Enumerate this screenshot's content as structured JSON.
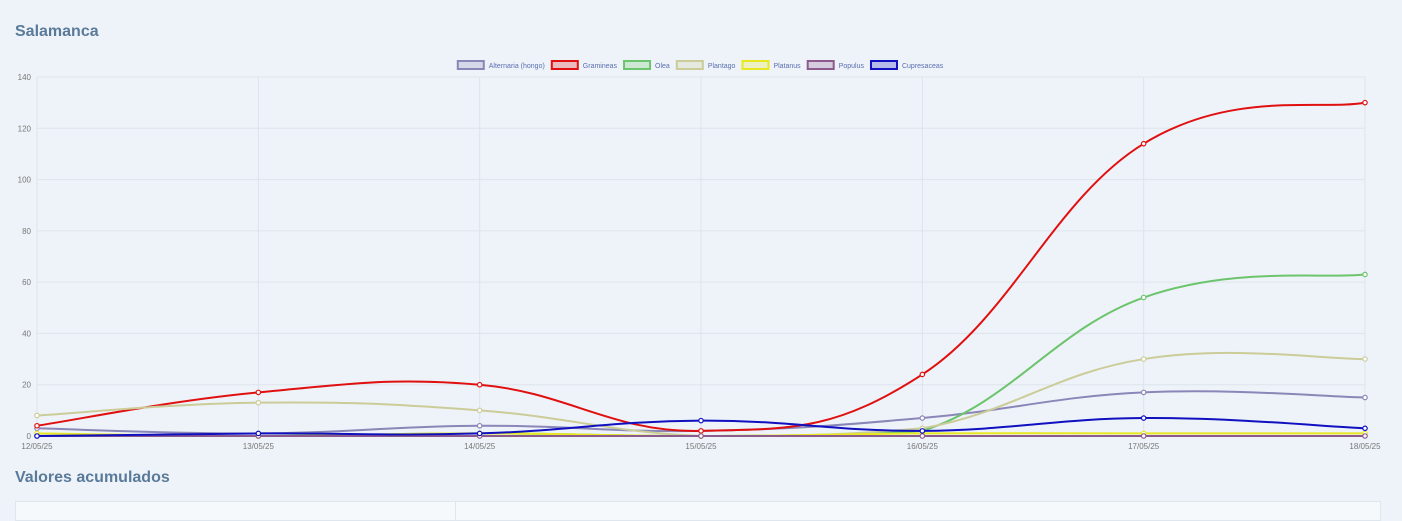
{
  "page": {
    "title": "Salamanca",
    "subtitle": "Valores acumulados"
  },
  "table": {
    "col1": "",
    "col2": ""
  },
  "chart_data": {
    "type": "line",
    "title": "",
    "xlabel": "",
    "ylabel": "",
    "ylim": [
      0,
      140
    ],
    "yticks": [
      0,
      20,
      40,
      60,
      80,
      100,
      120,
      140
    ],
    "grid": true,
    "legend_position": "top",
    "x": [
      "12/05/25",
      "13/05/25",
      "14/05/25",
      "15/05/25",
      "16/05/25",
      "17/05/25",
      "18/05/25"
    ],
    "series": [
      {
        "name": "Alternaria (hongo)",
        "color": "#8a86b8",
        "values": [
          3,
          1,
          4,
          2,
          7,
          17,
          15
        ]
      },
      {
        "name": "Gramineas",
        "color": "#e01010",
        "values": [
          4,
          17,
          20,
          2,
          24,
          114,
          130
        ]
      },
      {
        "name": "Olea",
        "color": "#6cc46c",
        "values": [
          0,
          0,
          1,
          0,
          2,
          54,
          63
        ]
      },
      {
        "name": "Plantago",
        "color": "#cccc99",
        "values": [
          8,
          13,
          10,
          0,
          3,
          30,
          30
        ]
      },
      {
        "name": "Platanus",
        "color": "#e8e820",
        "values": [
          1,
          0,
          1,
          0,
          1,
          1,
          1
        ]
      },
      {
        "name": "Populus",
        "color": "#8c5a8c",
        "values": [
          0,
          0,
          0,
          0,
          0,
          0,
          0
        ]
      },
      {
        "name": "Cupresaceas",
        "color": "#1010c0",
        "values": [
          0,
          1,
          1,
          6,
          2,
          7,
          3
        ]
      }
    ]
  }
}
